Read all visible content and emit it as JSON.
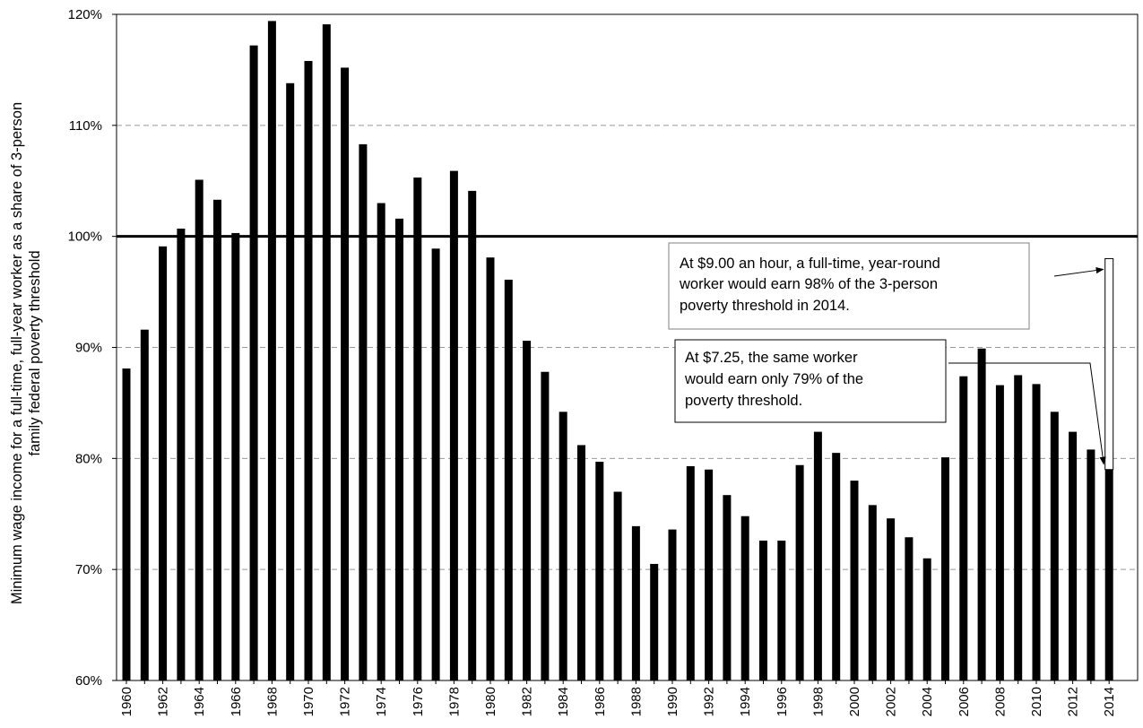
{
  "chart_data": {
    "type": "bar",
    "title": "",
    "xlabel": "",
    "ylabel": [
      "Minimum wage income for a full-time, full-year worker as a share of 3-person",
      "family federal poverty threshold"
    ],
    "ylim": [
      60,
      120
    ],
    "y_ticks": [
      "60%",
      "70%",
      "80%",
      "90%",
      "100%",
      "110%",
      "120%"
    ],
    "y_tick_values": [
      60,
      70,
      80,
      90,
      100,
      110,
      120
    ],
    "grid": "dashed horizontal at 70%, 80%, 90%, 110%",
    "reference_line": 100,
    "categories": [
      1960,
      1961,
      1962,
      1963,
      1964,
      1965,
      1966,
      1967,
      1968,
      1969,
      1970,
      1971,
      1972,
      1973,
      1974,
      1975,
      1976,
      1977,
      1978,
      1979,
      1980,
      1981,
      1982,
      1983,
      1984,
      1985,
      1986,
      1987,
      1988,
      1989,
      1990,
      1991,
      1992,
      1993,
      1994,
      1995,
      1996,
      1997,
      1998,
      1999,
      2000,
      2001,
      2002,
      2003,
      2004,
      2005,
      2006,
      2007,
      2008,
      2009,
      2010,
      2011,
      2012,
      2013,
      2014
    ],
    "x_tick_labels": [
      "1960",
      "1962",
      "1964",
      "1966",
      "1968",
      "1970",
      "1972",
      "1974",
      "1976",
      "1978",
      "1980",
      "1982",
      "1984",
      "1986",
      "1988",
      "1990",
      "1992",
      "1994",
      "1996",
      "1998",
      "2000",
      "2002",
      "2004",
      "2006",
      "2008",
      "2010",
      "2012",
      "2014"
    ],
    "values": [
      88.1,
      91.6,
      99.1,
      100.7,
      105.1,
      103.3,
      100.3,
      117.2,
      119.4,
      113.8,
      115.8,
      119.1,
      115.2,
      108.3,
      103.0,
      101.6,
      105.3,
      98.9,
      105.9,
      104.1,
      98.1,
      96.1,
      90.6,
      87.8,
      84.2,
      81.2,
      79.7,
      77.0,
      73.9,
      70.5,
      73.6,
      79.3,
      79.0,
      76.7,
      74.8,
      72.6,
      72.6,
      79.4,
      82.4,
      80.5,
      78.0,
      75.8,
      74.6,
      72.9,
      71.0,
      80.1,
      87.4,
      89.9,
      86.6,
      87.5,
      86.7,
      84.2,
      82.4,
      80.8,
      79.0
    ],
    "series": [
      {
        "name": "",
        "color": "#000000"
      }
    ],
    "proposal": {
      "x": 2014,
      "value": 98,
      "color": "#ffffff",
      "border": "#000000"
    },
    "annotations": [
      {
        "lines": [
          "At $9.00 an hour, a full-time, year-round",
          "worker would earn 98% of the 3-person",
          "poverty threshold in 2014."
        ],
        "points_to": {
          "x": 2014,
          "value": 98
        }
      },
      {
        "lines": [
          "At $7.25, the same worker",
          "would earn only 79% of  the",
          "poverty threshold."
        ],
        "points_to": {
          "x": 2014,
          "value": 79
        }
      }
    ]
  }
}
